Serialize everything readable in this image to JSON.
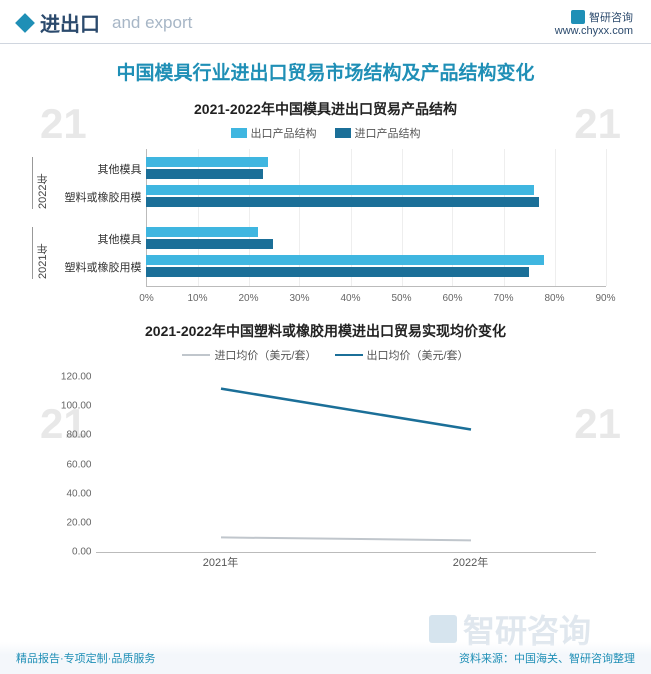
{
  "header": {
    "title_cn": "进出口",
    "title_en": "and export",
    "brand": "智研咨询",
    "brand_url": "www.chyxx.com"
  },
  "main_title": "中国模具行业进出口贸易市场结构及产品结构变化",
  "colors": {
    "export": "#3fb6e0",
    "import": "#1b6f98",
    "grid": "#eeeeee",
    "axis": "#bbbbbb",
    "text": "#333333",
    "accent": "#1f8fb6",
    "import_line": "#c0c6cc",
    "export_line": "#1b6f98"
  },
  "bar_chart": {
    "type": "bar",
    "title": "2021-2022年中国模具进出口贸易产品结构",
    "legend": [
      {
        "label": "出口产品结构",
        "color": "#3fb6e0"
      },
      {
        "label": "进口产品结构",
        "color": "#1b6f98"
      }
    ],
    "x_axis": {
      "min": 0,
      "max": 90,
      "step": 10,
      "suffix": "%"
    },
    "groups": [
      {
        "year": "2022年",
        "rows": [
          {
            "category": "其他模具",
            "export": 24,
            "import": 23
          },
          {
            "category": "塑料或橡胶用模",
            "export": 76,
            "import": 77
          }
        ]
      },
      {
        "year": "2021年",
        "rows": [
          {
            "category": "其他模具",
            "export": 22,
            "import": 25
          },
          {
            "category": "塑料或橡胶用模",
            "export": 78,
            "import": 75
          }
        ]
      }
    ]
  },
  "line_chart": {
    "type": "line",
    "title": "2021-2022年中国塑料或橡胶用模进出口贸易实现均价变化",
    "legend": [
      {
        "label": "进口均价（美元/套）",
        "color": "#c0c6cc"
      },
      {
        "label": "出口均价（美元/套）",
        "color": "#1b6f98"
      }
    ],
    "y_axis": {
      "min": 0,
      "max": 120,
      "step": 20,
      "decimals": 2
    },
    "x_labels": [
      "2021年",
      "2022年"
    ],
    "series": [
      {
        "name": "进口均价",
        "color": "#c0c6cc",
        "values": [
          10.0,
          8.0
        ],
        "width": 2
      },
      {
        "name": "出口均价",
        "color": "#1b6f98",
        "values": [
          112.0,
          84.0
        ],
        "width": 2.5
      }
    ]
  },
  "footer": {
    "left": "精品报告·专项定制·品质服务",
    "right": "资料来源：中国海关、智研咨询整理",
    "watermark": "智研咨询"
  }
}
